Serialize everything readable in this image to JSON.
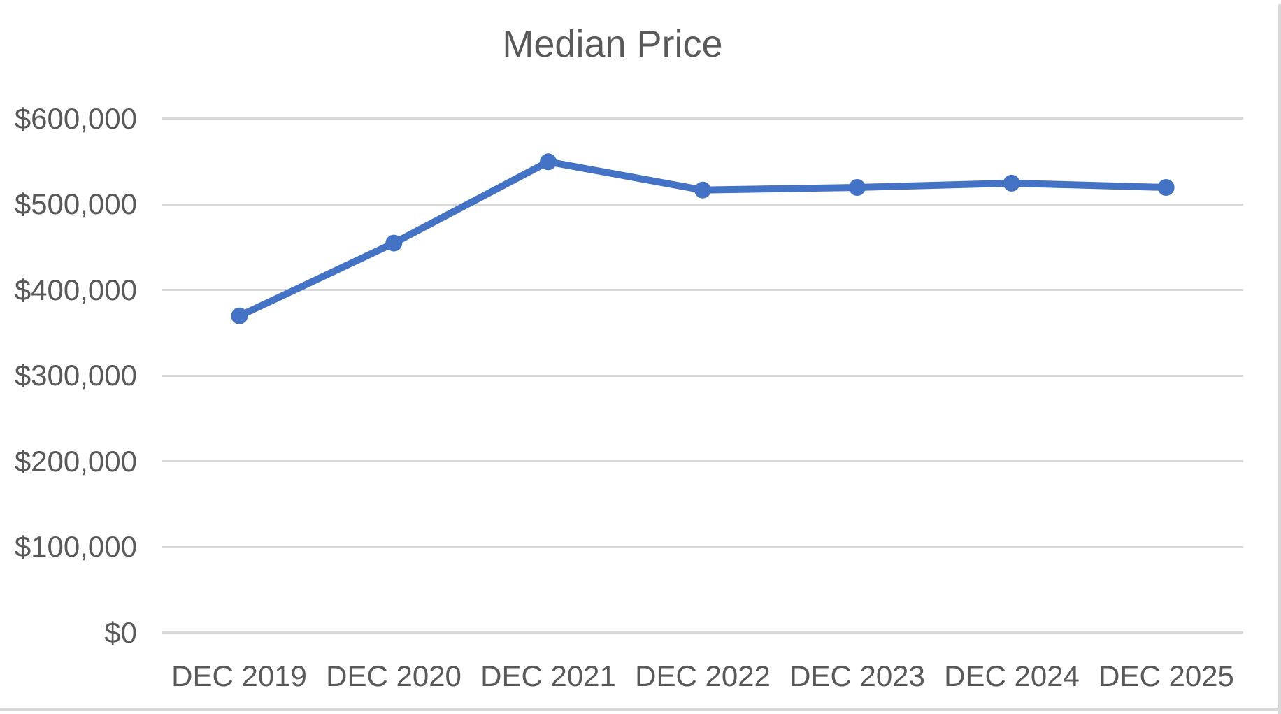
{
  "chart": {
    "title": "Median Price"
  },
  "chart_data": {
    "type": "line",
    "title": "Median Price",
    "categories": [
      "DEC 2019",
      "DEC 2020",
      "DEC 2021",
      "DEC 2022",
      "DEC 2023",
      "DEC 2024",
      "DEC 2025"
    ],
    "series": [
      {
        "name": "Median Price",
        "values": [
          370000,
          455000,
          550000,
          517000,
          520000,
          525000,
          520000
        ]
      }
    ],
    "xlabel": "",
    "ylabel": "",
    "ylim": [
      0,
      600000
    ],
    "ytick_interval": 100000,
    "y_tick_labels": [
      "$600,000",
      "$500,000",
      "$400,000",
      "$300,000",
      "$200,000",
      "$100,000",
      "$0"
    ],
    "grid": true,
    "legend_position": "none",
    "marker_style": "circle",
    "colors": {
      "line": "#4472C4",
      "marker": "#4472C4",
      "gridline": "#D9D9D9",
      "text": "#595959",
      "background": "#FFFFFF",
      "frame_border": "#D9D9D9"
    }
  }
}
